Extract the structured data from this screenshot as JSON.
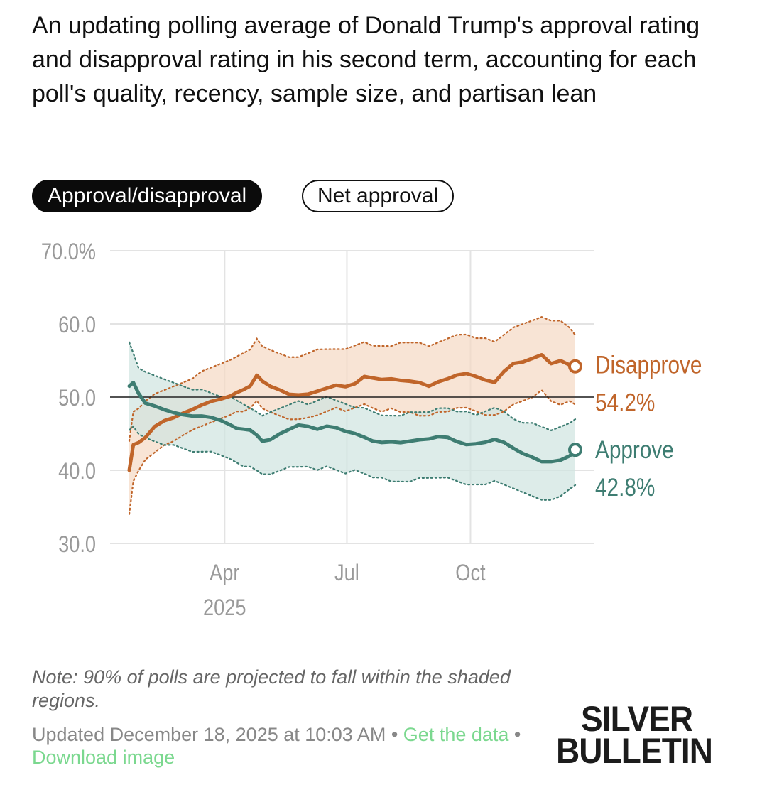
{
  "header": {
    "title": "An updating polling average of Donald Trump's approval rating and disapproval rating in his second term, accounting for each poll's quality, recency, sample size, and partisan lean"
  },
  "toggles": {
    "active_label": "Approval/disapproval",
    "inactive_label": "Net approval"
  },
  "colors": {
    "disapprove": "#c0652a",
    "disapprove_band": "#f5d9c3",
    "approve": "#3e7d72",
    "approve_band": "#cfe4e0",
    "grid": "#e3e3e3",
    "axis_text": "#999999",
    "link": "#7bd88f"
  },
  "chart_data": {
    "type": "line",
    "title": "",
    "xlabel": "",
    "ylabel": "",
    "ylim": [
      30,
      70
    ],
    "y_ticks": [
      30,
      40,
      50,
      60,
      70
    ],
    "y_tick_labels": [
      "30.0",
      "40.0",
      "50.0",
      "60.0",
      "70.0%"
    ],
    "x_range": [
      "2025-01-20",
      "2025-12-18"
    ],
    "x_ticks": [
      {
        "date": "2025-04-01",
        "label": "Apr",
        "sublabel": "2025"
      },
      {
        "date": "2025-07-01",
        "label": "Jul",
        "sublabel": ""
      },
      {
        "date": "2025-10-01",
        "label": "Oct",
        "sublabel": ""
      }
    ],
    "reference_line": 50,
    "legend_position": "right-end",
    "series": [
      {
        "name": "Disapprove",
        "latest_label": "54.2%",
        "dates": [
          "2025-01-20",
          "2025-01-23",
          "2025-01-27",
          "2025-02-01",
          "2025-02-08",
          "2025-02-15",
          "2025-02-22",
          "2025-03-01",
          "2025-03-08",
          "2025-03-15",
          "2025-03-22",
          "2025-03-29",
          "2025-04-05",
          "2025-04-10",
          "2025-04-15",
          "2025-04-20",
          "2025-04-25",
          "2025-04-29",
          "2025-05-05",
          "2025-05-12",
          "2025-05-19",
          "2025-05-26",
          "2025-06-02",
          "2025-06-09",
          "2025-06-16",
          "2025-06-23",
          "2025-06-30",
          "2025-07-07",
          "2025-07-14",
          "2025-07-20",
          "2025-07-27",
          "2025-08-03",
          "2025-08-10",
          "2025-08-17",
          "2025-08-24",
          "2025-08-31",
          "2025-09-07",
          "2025-09-14",
          "2025-09-21",
          "2025-09-28",
          "2025-10-05",
          "2025-10-12",
          "2025-10-19",
          "2025-10-26",
          "2025-11-02",
          "2025-11-09",
          "2025-11-16",
          "2025-11-23",
          "2025-11-30",
          "2025-12-07",
          "2025-12-14",
          "2025-12-18"
        ],
        "values": [
          40.0,
          43.5,
          43.8,
          44.5,
          46.0,
          46.8,
          47.2,
          47.8,
          48.3,
          48.9,
          49.4,
          49.7,
          50.1,
          50.6,
          51.0,
          51.5,
          53.0,
          52.2,
          51.5,
          51.0,
          50.4,
          50.3,
          50.4,
          50.8,
          51.2,
          51.6,
          51.4,
          51.8,
          52.8,
          52.6,
          52.4,
          52.5,
          52.3,
          52.2,
          52.0,
          51.5,
          52.1,
          52.5,
          53.0,
          53.2,
          52.8,
          52.3,
          52.0,
          53.5,
          54.6,
          54.8,
          55.3,
          55.8,
          54.6,
          55.0,
          54.4,
          54.2
        ],
        "lower": [
          34.0,
          38.5,
          40.0,
          41.5,
          42.5,
          43.5,
          44.0,
          44.8,
          45.5,
          46.0,
          46.5,
          47.0,
          47.5,
          48.0,
          48.0,
          48.5,
          49.5,
          48.5,
          48.0,
          47.5,
          47.0,
          47.0,
          47.2,
          47.5,
          48.0,
          48.5,
          48.0,
          48.5,
          49.0,
          48.5,
          48.0,
          48.5,
          48.0,
          48.0,
          47.5,
          47.5,
          48.0,
          48.0,
          48.5,
          48.5,
          48.0,
          47.5,
          47.5,
          48.0,
          49.0,
          49.5,
          50.0,
          51.0,
          49.5,
          49.0,
          49.5,
          49.0
        ],
        "upper": [
          44.0,
          48.0,
          48.5,
          49.5,
          50.5,
          51.0,
          51.5,
          52.0,
          52.5,
          53.5,
          54.0,
          54.5,
          55.0,
          55.5,
          56.0,
          56.5,
          58.0,
          57.0,
          56.5,
          56.0,
          55.5,
          55.5,
          56.0,
          56.5,
          56.5,
          56.5,
          56.5,
          57.0,
          57.5,
          57.0,
          57.0,
          57.0,
          57.5,
          57.5,
          57.5,
          57.0,
          57.5,
          58.0,
          58.5,
          58.5,
          58.0,
          58.0,
          57.5,
          58.5,
          59.5,
          60.0,
          60.5,
          61.0,
          60.5,
          60.5,
          59.5,
          58.5
        ]
      },
      {
        "name": "Approve",
        "latest_label": "42.8%",
        "dates": [
          "2025-01-20",
          "2025-01-23",
          "2025-01-27",
          "2025-02-01",
          "2025-02-08",
          "2025-02-15",
          "2025-02-22",
          "2025-03-01",
          "2025-03-08",
          "2025-03-15",
          "2025-03-22",
          "2025-03-29",
          "2025-04-05",
          "2025-04-10",
          "2025-04-15",
          "2025-04-20",
          "2025-04-25",
          "2025-04-29",
          "2025-05-05",
          "2025-05-12",
          "2025-05-19",
          "2025-05-26",
          "2025-06-02",
          "2025-06-09",
          "2025-06-16",
          "2025-06-23",
          "2025-06-30",
          "2025-07-07",
          "2025-07-14",
          "2025-07-20",
          "2025-07-27",
          "2025-08-03",
          "2025-08-10",
          "2025-08-17",
          "2025-08-24",
          "2025-08-31",
          "2025-09-07",
          "2025-09-14",
          "2025-09-21",
          "2025-09-28",
          "2025-10-05",
          "2025-10-12",
          "2025-10-19",
          "2025-10-26",
          "2025-11-02",
          "2025-11-09",
          "2025-11-16",
          "2025-11-23",
          "2025-11-30",
          "2025-12-07",
          "2025-12-14",
          "2025-12-18"
        ],
        "values": [
          51.5,
          52.0,
          50.5,
          49.2,
          48.8,
          48.3,
          47.9,
          47.6,
          47.4,
          47.4,
          47.2,
          46.8,
          46.2,
          45.7,
          45.6,
          45.5,
          44.8,
          44.0,
          44.2,
          45.0,
          45.6,
          46.2,
          46.0,
          45.6,
          46.0,
          45.8,
          45.3,
          45.0,
          44.5,
          44.0,
          43.8,
          43.9,
          43.8,
          44.0,
          44.2,
          44.3,
          44.6,
          44.5,
          43.9,
          43.5,
          43.6,
          43.8,
          44.2,
          43.8,
          43.0,
          42.3,
          41.8,
          41.2,
          41.2,
          41.4,
          42.0,
          42.8
        ],
        "lower": [
          45.5,
          46.0,
          45.0,
          44.5,
          44.0,
          43.5,
          43.5,
          43.0,
          42.5,
          42.5,
          42.5,
          42.0,
          41.5,
          41.0,
          40.5,
          40.5,
          40.0,
          39.5,
          39.5,
          40.0,
          40.5,
          40.5,
          40.5,
          40.0,
          40.5,
          40.0,
          39.5,
          40.0,
          39.5,
          39.0,
          39.0,
          38.5,
          38.5,
          38.5,
          39.0,
          39.0,
          39.0,
          39.0,
          38.5,
          38.0,
          38.0,
          38.0,
          38.5,
          38.0,
          37.5,
          37.0,
          36.5,
          36.0,
          36.0,
          36.5,
          37.5,
          38.0
        ],
        "upper": [
          57.5,
          56.0,
          54.0,
          53.5,
          53.0,
          52.5,
          52.0,
          51.5,
          51.0,
          51.0,
          50.5,
          50.0,
          50.0,
          49.5,
          49.0,
          48.5,
          48.0,
          47.5,
          48.0,
          48.5,
          49.0,
          49.5,
          49.0,
          49.5,
          50.0,
          49.5,
          49.0,
          48.5,
          48.5,
          48.0,
          47.5,
          47.5,
          47.5,
          48.0,
          48.0,
          48.0,
          48.5,
          48.5,
          48.0,
          48.0,
          47.5,
          48.0,
          48.5,
          48.0,
          47.0,
          46.5,
          46.5,
          46.0,
          45.5,
          46.0,
          46.5,
          47.0
        ]
      }
    ]
  },
  "footer": {
    "note": "Note: 90% of polls are projected to fall within the shaded regions.",
    "updated": "Updated December 18, 2025 at 10:03 AM",
    "separator": " • ",
    "get_data": "Get the data",
    "download": "Download image"
  },
  "logo": {
    "line1": "SILVER",
    "line2": "BULLETIN"
  }
}
